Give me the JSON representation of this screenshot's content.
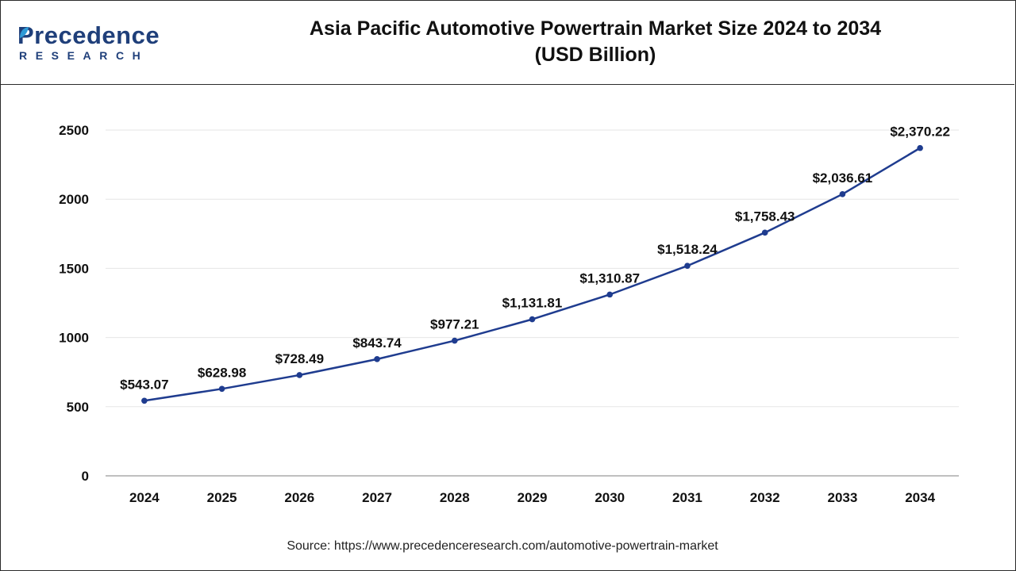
{
  "brand": {
    "name_top": "Precedence",
    "name_bottom": "RESEARCH",
    "color": "#1f3f7a",
    "leaf_color": "#2e9ad6"
  },
  "title_line1": "Asia Pacific Automotive Powertrain Market Size 2024 to 2034",
  "title_line2": "(USD Billion)",
  "source": "Source: https://www.precedenceresearch.com/automotive-powertrain-market",
  "chart_data": {
    "type": "line",
    "x": [
      "2024",
      "2025",
      "2026",
      "2027",
      "2028",
      "2029",
      "2030",
      "2031",
      "2032",
      "2033",
      "2034"
    ],
    "series": [
      {
        "values": [
          543.07,
          628.98,
          728.49,
          843.74,
          977.21,
          1131.81,
          1310.87,
          1518.24,
          1758.43,
          2036.61,
          2370.22
        ],
        "labels": [
          "$543.07",
          "$628.98",
          "$728.49",
          "$843.74",
          "$977.21",
          "$1,131.81",
          "$1,310.87",
          "$1,518.24",
          "$1,758.43",
          "$2,036.61",
          "$2,370.22"
        ],
        "color": "#1f3c8f"
      }
    ],
    "ylim": [
      0,
      2500
    ],
    "yticks": [
      0,
      500,
      1000,
      1500,
      2000,
      2500
    ],
    "ytick_labels": [
      "0",
      "500",
      "1000",
      "1500",
      "2000",
      "2500"
    ],
    "grid": true,
    "legend": "none"
  }
}
